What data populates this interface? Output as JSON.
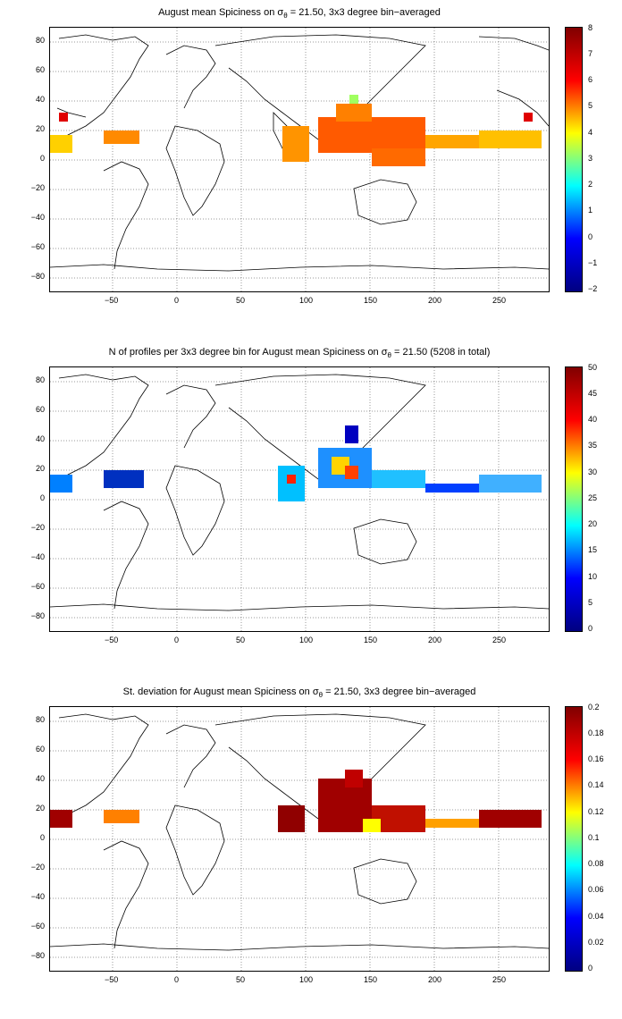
{
  "panels": [
    {
      "title_prefix": "August mean Spiciness on",
      "sigma": "σ",
      "sub": "θ",
      "title_suffix": " = 21.50, 3x3 degree bin−averaged",
      "colorbar": {
        "min": -2,
        "max": 8,
        "ticks": [
          "8",
          "7",
          "6",
          "5",
          "4",
          "3",
          "2",
          "1",
          "0",
          "−1",
          "−2"
        ]
      }
    },
    {
      "title_prefix": "N of profiles per 3x3 degree bin for August mean Spiciness on",
      "sigma": "σ",
      "sub": "θ",
      "title_suffix": " = 21.50 (5208 in total)",
      "colorbar": {
        "min": 0,
        "max": 50,
        "ticks": [
          "50",
          "45",
          "40",
          "35",
          "30",
          "25",
          "20",
          "15",
          "10",
          "5",
          "0"
        ]
      }
    },
    {
      "title_prefix": "St. deviation for August mean Spiciness on",
      "sigma": "σ",
      "sub": "θ",
      "title_suffix": " = 21.50, 3x3 degree bin−averaged",
      "colorbar": {
        "min": 0,
        "max": 0.2,
        "ticks": [
          "0.2",
          "0.18",
          "0.16",
          "0.14",
          "0.12",
          "0.1",
          "0.08",
          "0.06",
          "0.04",
          "0.02",
          "0"
        ]
      }
    }
  ],
  "axes": {
    "x_ticks": [
      "−50",
      "0",
      "50",
      "100",
      "150",
      "200",
      "250"
    ],
    "y_ticks": [
      "80",
      "60",
      "40",
      "20",
      "0",
      "−20",
      "−40",
      "−60",
      "−80"
    ],
    "xlim": [
      -95,
      290
    ],
    "ylim": [
      -90,
      90
    ],
    "grid": "dotted"
  },
  "colormap": "jet"
}
